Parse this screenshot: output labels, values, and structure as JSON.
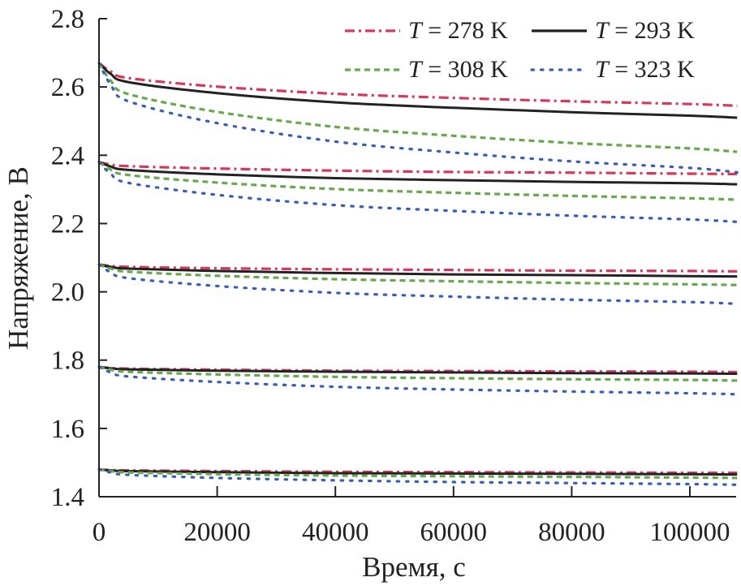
{
  "chart_data": {
    "type": "line",
    "title": "",
    "xlabel": "Время, с",
    "ylabel": "Напряжение, В",
    "xlim": [
      0,
      108000
    ],
    "ylim": [
      1.4,
      2.8
    ],
    "xticks": [
      0,
      20000,
      40000,
      60000,
      80000,
      100000
    ],
    "xtick_labels": [
      "0",
      "20000",
      "40000",
      "60000",
      "80000",
      "100000"
    ],
    "yticks": [
      1.4,
      1.6,
      1.8,
      2.0,
      2.2,
      2.4,
      2.6,
      2.8
    ],
    "ytick_labels": [
      "1.4",
      "1.6",
      "1.8",
      "2.0",
      "2.2",
      "2.4",
      "2.6",
      "2.8"
    ],
    "grid": false,
    "legend_position": "top-right",
    "x": [
      0,
      2000,
      5000,
      20000,
      40000,
      60000,
      80000,
      100000,
      108000
    ],
    "series": [
      {
        "var": "T",
        "rest": "= 278 K",
        "color": "#d23a5c",
        "style": "dashdot",
        "curves": [
          [
            2.67,
            2.645,
            2.626,
            2.601,
            2.58,
            2.568,
            2.558,
            2.55,
            2.545
          ],
          [
            2.38,
            2.373,
            2.368,
            2.361,
            2.355,
            2.351,
            2.349,
            2.346,
            2.345
          ],
          [
            2.08,
            2.076,
            2.073,
            2.069,
            2.066,
            2.064,
            2.062,
            2.061,
            2.06
          ],
          [
            1.78,
            1.777,
            1.775,
            1.772,
            1.769,
            1.768,
            1.767,
            1.766,
            1.765
          ],
          [
            1.48,
            1.478,
            1.477,
            1.475,
            1.473,
            1.472,
            1.471,
            1.47,
            1.47
          ]
        ]
      },
      {
        "var": "T",
        "rest": "= 293 K",
        "color": "#222222",
        "style": "solid",
        "curves": [
          [
            2.67,
            2.638,
            2.614,
            2.582,
            2.555,
            2.539,
            2.526,
            2.516,
            2.51
          ],
          [
            2.38,
            2.367,
            2.357,
            2.344,
            2.333,
            2.327,
            2.322,
            2.318,
            2.315
          ],
          [
            2.08,
            2.073,
            2.068,
            2.061,
            2.055,
            2.051,
            2.049,
            2.046,
            2.045
          ],
          [
            1.78,
            1.776,
            1.773,
            1.769,
            1.766,
            1.764,
            1.762,
            1.761,
            1.76
          ],
          [
            1.48,
            1.477,
            1.475,
            1.472,
            1.469,
            1.468,
            1.467,
            1.466,
            1.465
          ]
        ]
      },
      {
        "var": "T",
        "rest": "= 308 K",
        "color": "#6aa84f",
        "style": "dashed",
        "curves": [
          [
            2.67,
            2.618,
            2.579,
            2.527,
            2.483,
            2.457,
            2.436,
            2.42,
            2.41
          ],
          [
            2.38,
            2.358,
            2.342,
            2.32,
            2.301,
            2.29,
            2.281,
            2.274,
            2.27
          ],
          [
            2.08,
            2.068,
            2.059,
            2.047,
            2.037,
            2.031,
            2.026,
            2.022,
            2.02
          ],
          [
            1.78,
            1.772,
            1.766,
            1.758,
            1.751,
            1.747,
            1.744,
            1.742,
            1.74
          ],
          [
            1.48,
            1.475,
            1.471,
            1.466,
            1.462,
            1.46,
            1.458,
            1.456,
            1.455
          ]
        ]
      },
      {
        "var": "T",
        "rest": "= 323 K",
        "color": "#3a5fb0",
        "style": "dotted",
        "curves": [
          [
            2.67,
            2.606,
            2.558,
            2.494,
            2.44,
            2.408,
            2.382,
            2.363,
            2.35
          ],
          [
            2.38,
            2.345,
            2.319,
            2.284,
            2.254,
            2.237,
            2.223,
            2.212,
            2.205
          ],
          [
            2.08,
            2.057,
            2.04,
            2.017,
            1.997,
            1.986,
            1.977,
            1.97,
            1.965
          ],
          [
            1.78,
            1.764,
            1.752,
            1.736,
            1.722,
            1.714,
            1.708,
            1.703,
            1.7
          ],
          [
            1.48,
            1.471,
            1.464,
            1.455,
            1.448,
            1.443,
            1.44,
            1.437,
            1.435
          ]
        ]
      }
    ]
  }
}
